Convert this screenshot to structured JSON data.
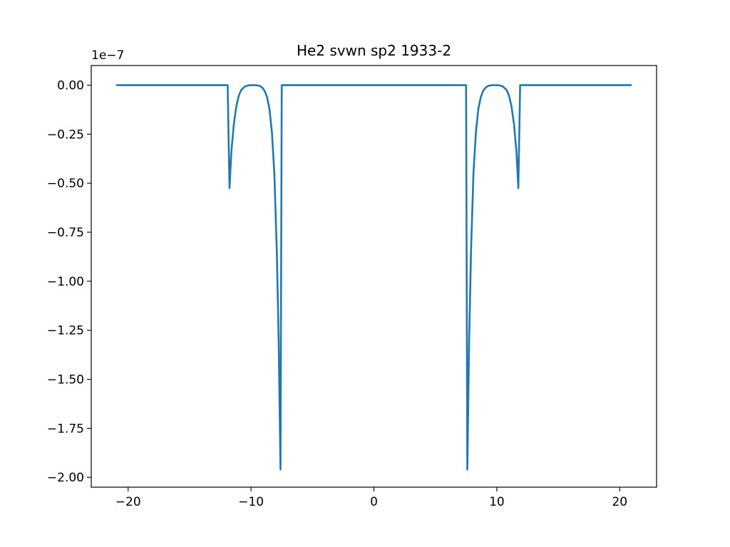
{
  "chart_data": {
    "type": "line",
    "title": "He2 svwn sp2 1933-2",
    "xlabel": "",
    "ylabel": "",
    "y_offset_label": "1e−7",
    "y_scale": 1e-07,
    "xlim": [
      -23,
      23
    ],
    "ylim": [
      -2.05,
      0.1
    ],
    "x_ticks": [
      -20,
      -10,
      0,
      10,
      20
    ],
    "x_tick_labels": [
      "−20",
      "−10",
      "0",
      "10",
      "20"
    ],
    "y_ticks": [
      0.0,
      -0.25,
      -0.5,
      -0.75,
      -1.0,
      -1.25,
      -1.5,
      -1.75,
      -2.0
    ],
    "y_tick_labels": [
      "0.00",
      "−0.25",
      "−0.50",
      "−0.75",
      "−1.00",
      "−1.25",
      "−1.50",
      "−1.75",
      "−2.00"
    ],
    "grid": false,
    "series": [
      {
        "color": "#1f77b4",
        "x": [
          -20.9,
          -11.9,
          -11.75,
          -11.6,
          -11.4,
          -11.2,
          -11.0,
          -10.8,
          -10.5,
          -10.2,
          -9.9,
          -9.7,
          -9.5,
          -9.3,
          -9.1,
          -8.9,
          -8.7,
          -8.5,
          -8.3,
          -8.1,
          -7.9,
          -7.75,
          -7.6,
          -7.5,
          -7.4,
          7.4,
          7.5,
          7.6,
          7.75,
          7.9,
          8.1,
          8.3,
          8.5,
          8.7,
          8.9,
          9.1,
          9.3,
          9.5,
          9.7,
          9.9,
          10.2,
          10.5,
          10.8,
          11.0,
          11.2,
          11.4,
          11.6,
          11.75,
          11.9,
          20.9
        ],
        "y": [
          0.0,
          0.0,
          -0.525,
          -0.34,
          -0.2,
          -0.11,
          -0.055,
          -0.025,
          -0.007,
          -0.001,
          0.0,
          0.0,
          -0.001,
          -0.004,
          -0.012,
          -0.028,
          -0.06,
          -0.12,
          -0.24,
          -0.45,
          -0.85,
          -1.3,
          -1.96,
          0.0,
          0.0,
          0.0,
          0.0,
          -1.96,
          -1.3,
          -0.85,
          -0.45,
          -0.24,
          -0.12,
          -0.06,
          -0.028,
          -0.012,
          -0.004,
          -0.001,
          0.0,
          0.0,
          -0.001,
          -0.007,
          -0.025,
          -0.055,
          -0.11,
          -0.2,
          -0.34,
          -0.525,
          0.0,
          0.0
        ]
      }
    ]
  }
}
